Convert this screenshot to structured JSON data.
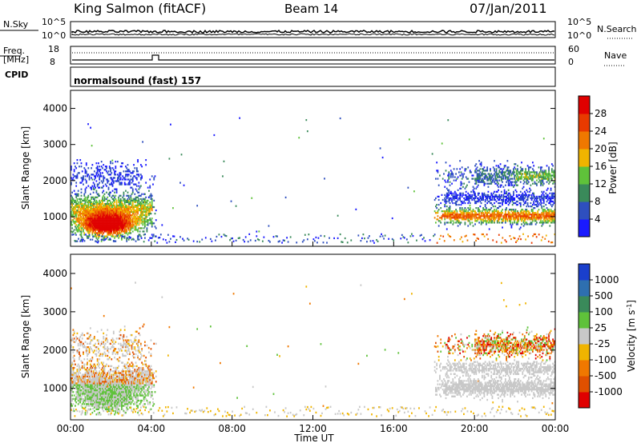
{
  "header": {
    "station": "King Salmon (fitACF)",
    "beam": "Beam 14",
    "date": "07/Jan/2011"
  },
  "status_panel": {
    "nsky_label": "N.Sky",
    "nsky_ticks": [
      "10^5",
      "10^0"
    ],
    "nsearch_label": "N.Search",
    "nsearch_ticks": [
      "10^5",
      "10^0"
    ],
    "freq_label_line1": "Freq.",
    "freq_label_line2": "[MHz]",
    "freq_ticks": [
      "18",
      "8"
    ],
    "nave_label": "Nave",
    "nave_ticks": [
      "60",
      "0"
    ],
    "cpid_label": "CPID",
    "cpid_value": "normalsound (fast) 157"
  },
  "x_axis": {
    "label": "Time UT",
    "ticks": [
      "00:00",
      "04:00",
      "08:00",
      "12:00",
      "16:00",
      "20:00",
      "00:00"
    ]
  },
  "colors": {
    "power_scale": [
      "#1a1aff",
      "#2e4fbf",
      "#3a8a5a",
      "#5fc23a",
      "#f0b400",
      "#f07800",
      "#e83a00",
      "#e00000"
    ],
    "velocity_scale": [
      "#1a3fcc",
      "#2e6fb0",
      "#3a8a5a",
      "#5fc23a",
      "#c8c8c8",
      "#f0b400",
      "#f07800",
      "#e05000",
      "#e00000"
    ]
  },
  "chart_data": [
    {
      "type": "heatmap",
      "title": "",
      "xlabel": "",
      "ylabel": "Slant Range [km]",
      "xlim": [
        0,
        24
      ],
      "ylim": [
        180,
        4500
      ],
      "y_ticks": [
        "1000",
        "2000",
        "3000",
        "4000"
      ],
      "colorbar_label": "Power [dB]",
      "colorbar_ticks": [
        "4",
        "8",
        "12",
        "16",
        "20",
        "24",
        "28"
      ],
      "colorbar_range": [
        0,
        30
      ]
    },
    {
      "type": "heatmap",
      "title": "",
      "xlabel": "Time UT",
      "ylabel": "Slant Range [km]",
      "xlim": [
        0,
        24
      ],
      "ylim": [
        180,
        4500
      ],
      "y_ticks": [
        "1000",
        "2000",
        "3000",
        "4000"
      ],
      "colorbar_label": "Velocity [m s^-1]",
      "colorbar_ticks": [
        "1000",
        "500",
        "100",
        "25",
        "-25",
        "-100",
        "-500",
        "-1000"
      ]
    }
  ]
}
